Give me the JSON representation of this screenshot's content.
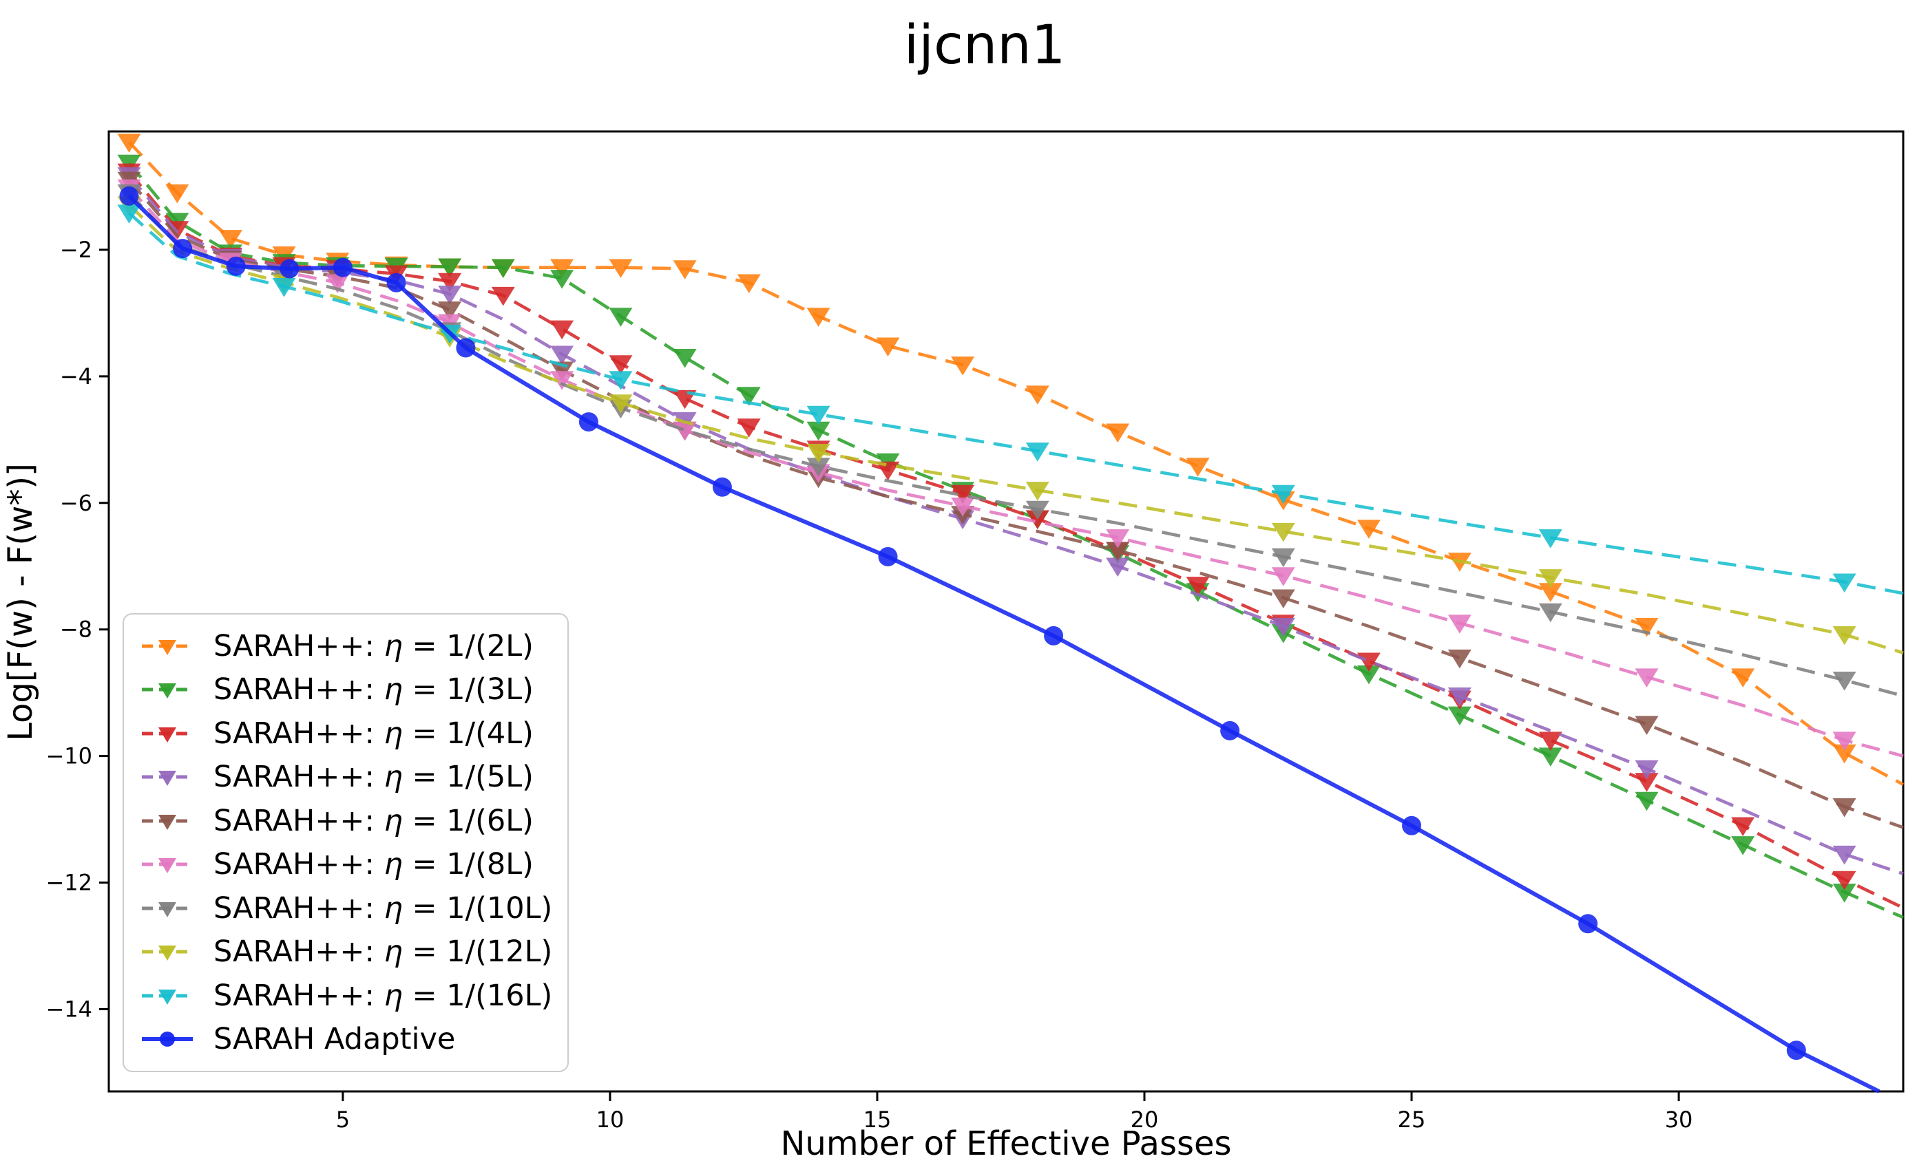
{
  "title": "ijcnn1",
  "axes": {
    "xlabel": "Number of Effective Passes",
    "ylabel": "Log[F(w) - F(w*)]"
  },
  "chart_data": {
    "type": "line",
    "title": "ijcnn1",
    "xlabel": "Number of Effective Passes",
    "ylabel": "Log[F(w) - F(w*)]",
    "xlim": [
      0.62,
      34.2
    ],
    "ylim": [
      -15.3,
      -0.13
    ],
    "xticks": [
      5,
      10,
      15,
      20,
      25,
      30
    ],
    "yticks": [
      -2,
      -4,
      -6,
      -8,
      -10,
      -12,
      -14
    ],
    "grid": false,
    "legend_position": "lower left",
    "x_common": [
      1,
      1.9,
      2.9,
      3.9,
      4.9,
      6.0,
      7.0,
      8.0,
      9.1,
      10.2,
      11.4,
      12.6,
      13.9,
      15.2,
      16.6,
      18.0,
      19.5,
      21.0,
      22.6,
      24.2,
      25.9,
      27.6,
      29.4,
      31.2,
      33.1,
      34.2
    ],
    "series": [
      {
        "name": "SARAH++: η = 1/(2L)",
        "color": "#ff7f0e",
        "style": "dashed",
        "marker": "triangle-down",
        "marker_every": 1,
        "y": [
          -0.3,
          -1.1,
          -1.82,
          -2.08,
          -2.18,
          -2.24,
          -2.27,
          -2.28,
          -2.28,
          -2.28,
          -2.3,
          -2.52,
          -3.05,
          -3.52,
          -3.82,
          -4.28,
          -4.88,
          -5.42,
          -5.95,
          -6.4,
          -6.92,
          -7.4,
          -7.95,
          -8.75,
          -9.95,
          -10.45
        ]
      },
      {
        "name": "SARAH++: η = 1/(3L)",
        "color": "#2ca02c",
        "style": "dashed",
        "marker": "triangle-down",
        "marker_every": 1,
        "y": [
          -0.63,
          -1.55,
          -2.05,
          -2.2,
          -2.25,
          -2.26,
          -2.27,
          -2.28,
          -2.45,
          -3.05,
          -3.7,
          -4.3,
          -4.85,
          -5.35,
          -5.8,
          -6.25,
          -6.8,
          -7.4,
          -8.05,
          -8.7,
          -9.35,
          -10.0,
          -10.7,
          -11.4,
          -12.15,
          -12.55
        ]
      },
      {
        "name": "SARAH++: η = 1/(4L)",
        "color": "#d62728",
        "style": "dashed",
        "marker": "triangle-down",
        "marker_every": 1,
        "y": [
          -0.77,
          -1.68,
          -2.1,
          -2.25,
          -2.3,
          -2.38,
          -2.5,
          -2.72,
          -3.25,
          -3.8,
          -4.35,
          -4.8,
          -5.15,
          -5.48,
          -5.85,
          -6.25,
          -6.75,
          -7.3,
          -7.9,
          -8.5,
          -9.1,
          -9.75,
          -10.4,
          -11.1,
          -11.95,
          -12.4
        ]
      },
      {
        "name": "SARAH++: η = 1/(5L)",
        "color": "#9467bd",
        "style": "dashed",
        "marker": "triangle-down",
        "marker_every": 2,
        "y": [
          -0.83,
          -1.72,
          -2.12,
          -2.27,
          -2.35,
          -2.48,
          -2.7,
          -3.1,
          -3.65,
          -4.15,
          -4.7,
          -5.15,
          -5.55,
          -5.9,
          -6.25,
          -6.6,
          -7.0,
          -7.45,
          -7.95,
          -8.5,
          -9.05,
          -9.6,
          -10.2,
          -10.85,
          -11.55,
          -11.86
        ]
      },
      {
        "name": "SARAH++: η = 1/(6L)",
        "color": "#8c564b",
        "style": "dashed",
        "marker": "triangle-down",
        "marker_every": 2,
        "y": [
          -0.9,
          -1.78,
          -2.15,
          -2.3,
          -2.42,
          -2.6,
          -2.95,
          -3.4,
          -3.9,
          -4.38,
          -4.85,
          -5.25,
          -5.6,
          -5.9,
          -6.18,
          -6.45,
          -6.75,
          -7.1,
          -7.5,
          -7.95,
          -8.45,
          -8.95,
          -9.5,
          -10.1,
          -10.8,
          -11.13
        ]
      },
      {
        "name": "SARAH++: η = 1/(8L)",
        "color": "#e377c2",
        "style": "dashed",
        "marker": "triangle-down",
        "marker_every": 2,
        "y": [
          -1.02,
          -1.85,
          -2.18,
          -2.35,
          -2.52,
          -2.8,
          -3.15,
          -3.6,
          -4.05,
          -4.45,
          -4.85,
          -5.2,
          -5.52,
          -5.8,
          -6.05,
          -6.3,
          -6.55,
          -6.85,
          -7.15,
          -7.5,
          -7.9,
          -8.3,
          -8.75,
          -9.2,
          -9.75,
          -10.0
        ]
      },
      {
        "name": "SARAH++: η = 1/(10L)",
        "color": "#7f7f7f",
        "style": "dashed",
        "marker": "triangle-down",
        "marker_every": 3,
        "y": [
          -1.1,
          -1.92,
          -2.22,
          -2.42,
          -2.62,
          -2.92,
          -3.28,
          -3.7,
          -4.12,
          -4.5,
          -4.85,
          -5.15,
          -5.42,
          -5.65,
          -5.88,
          -6.1,
          -6.32,
          -6.58,
          -6.85,
          -7.12,
          -7.42,
          -7.72,
          -8.05,
          -8.4,
          -8.8,
          -9.05
        ]
      },
      {
        "name": "SARAH++: η = 1/(12L)",
        "color": "#bcbd22",
        "style": "dashed",
        "marker": "triangle-down",
        "marker_every": 3,
        "y": [
          -1.29,
          -2.02,
          -2.3,
          -2.52,
          -2.75,
          -3.05,
          -3.38,
          -3.75,
          -4.1,
          -4.42,
          -4.72,
          -4.98,
          -5.2,
          -5.4,
          -5.6,
          -5.8,
          -6.0,
          -6.22,
          -6.45,
          -6.68,
          -6.92,
          -7.18,
          -7.45,
          -7.75,
          -8.08,
          -8.37
        ]
      },
      {
        "name": "SARAH++: η = 1/(16L)",
        "color": "#17becf",
        "style": "dashed",
        "marker": "triangle-down",
        "marker_every": 3,
        "y": [
          -1.42,
          -2.1,
          -2.38,
          -2.58,
          -2.8,
          -3.08,
          -3.32,
          -3.55,
          -3.82,
          -4.05,
          -4.25,
          -4.42,
          -4.6,
          -4.78,
          -4.98,
          -5.18,
          -5.4,
          -5.62,
          -5.85,
          -6.08,
          -6.32,
          -6.55,
          -6.78,
          -7.0,
          -7.25,
          -7.43
        ]
      },
      {
        "name": "SARAH Adaptive",
        "color": "#1425f0",
        "style": "solid",
        "marker": "circle",
        "marker_every": 1,
        "x": [
          1,
          2,
          3,
          4,
          5,
          6,
          7.3,
          9.6,
          12.1,
          15.2,
          18.3,
          21.6,
          25.0,
          28.3,
          32.2,
          33.75
        ],
        "y": [
          -1.15,
          -1.98,
          -2.26,
          -2.3,
          -2.28,
          -2.52,
          -3.55,
          -4.72,
          -5.75,
          -6.85,
          -8.1,
          -9.6,
          -11.1,
          -12.65,
          -14.65,
          -15.3
        ]
      }
    ]
  },
  "legend": {
    "entries": [
      {
        "label": "SARAH++: η = 1/(2L)"
      },
      {
        "label": "SARAH++: η = 1/(3L)"
      },
      {
        "label": "SARAH++: η = 1/(4L)"
      },
      {
        "label": "SARAH++: η = 1/(5L)"
      },
      {
        "label": "SARAH++: η = 1/(6L)"
      },
      {
        "label": "SARAH++: η = 1/(8L)"
      },
      {
        "label": "SARAH++: η = 1/(10L)"
      },
      {
        "label": "SARAH++: η = 1/(12L)"
      },
      {
        "label": "SARAH++: η = 1/(16L)"
      },
      {
        "label": "SARAH Adaptive"
      }
    ]
  }
}
